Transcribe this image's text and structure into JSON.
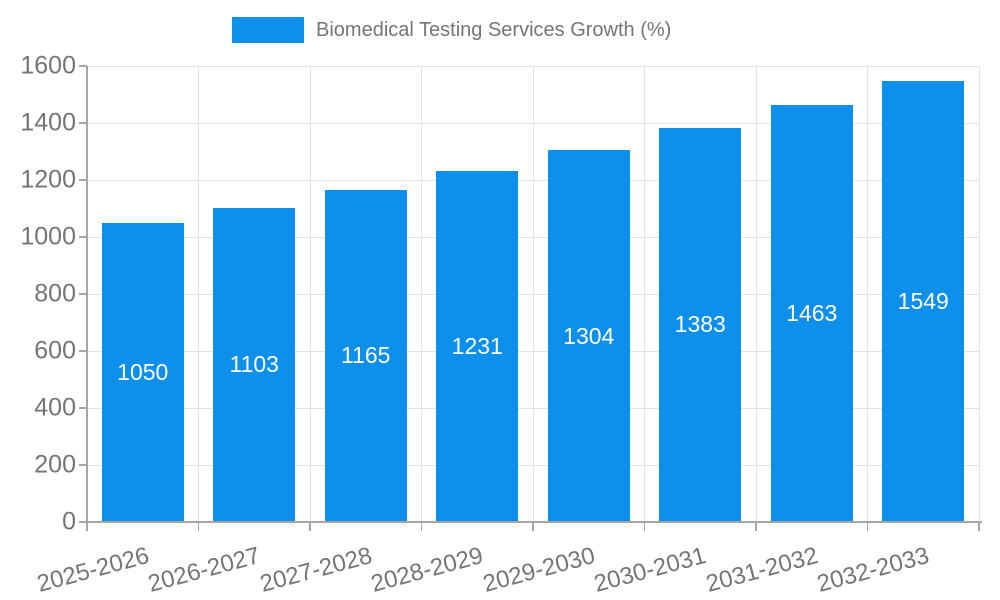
{
  "legend": {
    "label": "Biomedical Testing Services Growth (%)",
    "swatch_color": "#0d8fec"
  },
  "chart_data": {
    "type": "bar",
    "title": "Biomedical Testing Services Growth (%)",
    "categories": [
      "2025-2026",
      "2026-2027",
      "2027-2028",
      "2028-2029",
      "2029-2030",
      "2030-2031",
      "2031-2032",
      "2032-2033"
    ],
    "values": [
      1050,
      1103,
      1165,
      1231,
      1304,
      1383,
      1463,
      1549
    ],
    "value_labels": [
      "1050",
      "1103",
      "1165",
      "1231",
      "1304",
      "1383",
      "1463",
      "1549"
    ],
    "ytick_labels": [
      "0",
      "200",
      "400",
      "600",
      "800",
      "1000",
      "1200",
      "1400",
      "1600"
    ],
    "xlabel": "",
    "ylabel": "",
    "ylim": [
      0,
      1600
    ],
    "ytick_step": 200,
    "grid": true,
    "legend_position": "top-center",
    "bar_color": "#0d8fec",
    "value_label_color": "#ffffff",
    "tick_label_color": "#757575",
    "grid_color": "#e2e2e2",
    "axis_color": "#a5a5a5"
  }
}
